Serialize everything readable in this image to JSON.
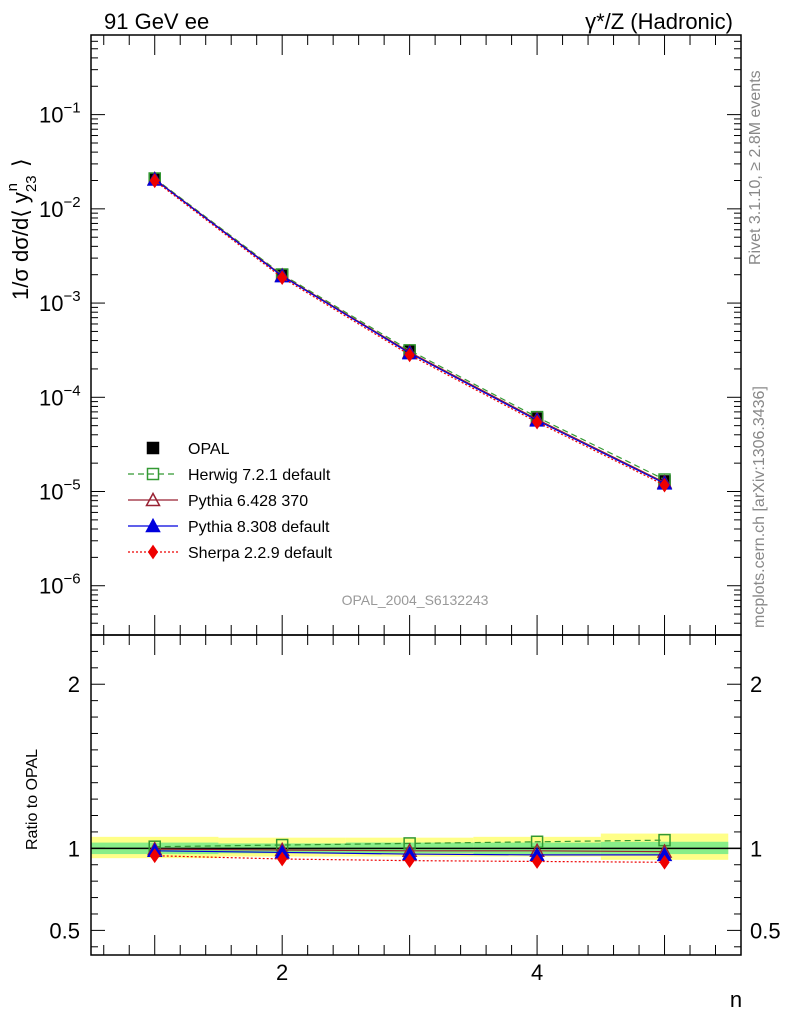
{
  "header": {
    "left": "91 GeV ee",
    "right_prefix": "γ",
    "right_suffix": "*/Z (Hadronic)"
  },
  "side_labels": {
    "rivet": "Rivet 3.1.10, ≥ 2.8M events",
    "mcplots": "mcplots.cern.ch [arXiv:1306.3436]"
  },
  "analysis_tag": "OPAL_2004_S6132243",
  "chart_data": [
    {
      "type": "line",
      "panel": "main",
      "ylabel": "1/σ dσ/d⟨ y23ⁿ ⟩",
      "yscale": "log",
      "ylim": [
        3e-07,
        0.7
      ],
      "xlim": [
        0.5,
        5.6
      ],
      "yticks": [
        {
          "value": 1e-06,
          "exp": "−6"
        },
        {
          "value": 1e-05,
          "exp": "−5"
        },
        {
          "value": 0.0001,
          "exp": "−4"
        },
        {
          "value": 0.001,
          "exp": "−3"
        },
        {
          "value": 0.01,
          "exp": "−2"
        },
        {
          "value": 0.1,
          "exp": "−1"
        }
      ],
      "x": [
        1,
        2,
        3,
        4,
        5
      ],
      "series": [
        {
          "name": "OPAL",
          "color": "#000000",
          "style": "data",
          "marker": "square-filled",
          "values": [
            0.0208,
            0.00198,
            0.000305,
            5.92e-05,
            1.28e-05
          ]
        },
        {
          "name": "Herwig 7.2.1 default",
          "color": "#339933",
          "style": "dashed",
          "marker": "square-open",
          "values": [
            0.021,
            0.00201,
            0.000315,
            6.16e-05,
            1.34e-05
          ]
        },
        {
          "name": "Pythia 6.428 370",
          "color": "#992233",
          "style": "solid",
          "marker": "triangle-open",
          "values": [
            0.0207,
            0.00196,
            0.000301,
            5.85e-05,
            1.25e-05
          ]
        },
        {
          "name": "Pythia 8.308 default",
          "color": "#0000dd",
          "style": "solid",
          "marker": "triangle-filled",
          "values": [
            0.0205,
            0.00193,
            0.000294,
            5.69e-05,
            1.22e-05
          ]
        },
        {
          "name": "Sherpa 2.2.9 default",
          "color": "#ee0000",
          "style": "dotted",
          "marker": "diamond-filled",
          "values": [
            0.0199,
            0.00186,
            0.000282,
            5.45e-05,
            1.17e-05
          ]
        }
      ]
    },
    {
      "type": "line",
      "panel": "ratio",
      "ylabel": "Ratio to OPAL",
      "xlabel": "n",
      "ylim": [
        0.35,
        2.3
      ],
      "xlim": [
        0.5,
        5.6
      ],
      "yticks": [
        0.5,
        1,
        2
      ],
      "ytick_labels": [
        "0.5",
        "1",
        "2"
      ],
      "xticks": [
        2,
        4
      ],
      "xtick_labels": [
        "2",
        "4"
      ],
      "uncertainty_bands": {
        "bins": [
          [
            0.5,
            1.5
          ],
          [
            1.5,
            2.5
          ],
          [
            2.5,
            3.5
          ],
          [
            3.5,
            4.5
          ],
          [
            4.5,
            5.5
          ]
        ],
        "outer": {
          "color": "#ffff88",
          "lo": [
            0.94,
            0.95,
            0.95,
            0.95,
            0.93
          ],
          "hi": [
            1.07,
            1.065,
            1.065,
            1.07,
            1.09
          ]
        },
        "inner": {
          "color": "#88ee88",
          "lo": [
            0.965,
            0.97,
            0.97,
            0.965,
            0.965
          ],
          "hi": [
            1.035,
            1.03,
            1.035,
            1.035,
            1.04
          ]
        }
      },
      "series": [
        {
          "name": "Herwig 7.2.1 default",
          "values": [
            1.01,
            1.02,
            1.03,
            1.04,
            1.05
          ]
        },
        {
          "name": "Pythia 6.428 370",
          "values": [
            0.995,
            0.99,
            0.985,
            0.985,
            0.98
          ]
        },
        {
          "name": "Pythia 8.308 default",
          "values": [
            0.985,
            0.975,
            0.965,
            0.96,
            0.96
          ]
        },
        {
          "name": "Sherpa 2.2.9 default",
          "values": [
            0.955,
            0.935,
            0.925,
            0.92,
            0.915
          ]
        }
      ]
    }
  ]
}
